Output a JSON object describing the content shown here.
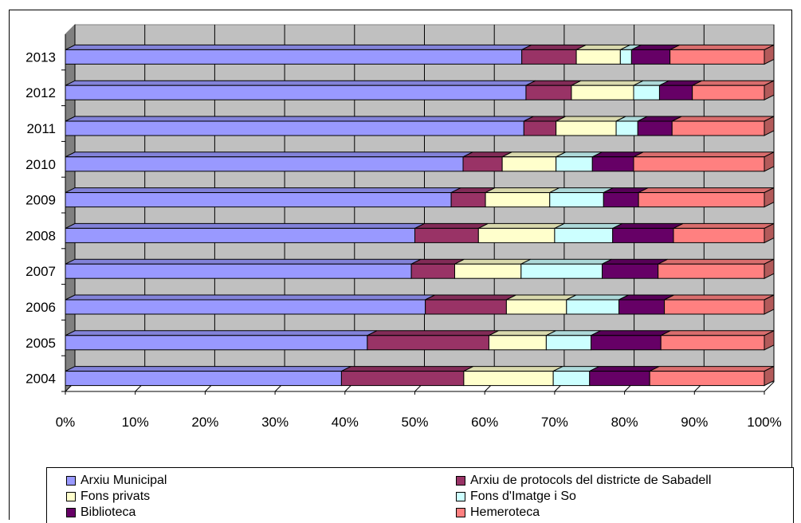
{
  "chart_data": {
    "type": "bar",
    "orientation": "horizontal",
    "stacked": "100%",
    "three_d": true,
    "title": "",
    "xlabel": "",
    "ylabel": "",
    "xlim": [
      0,
      100
    ],
    "x_ticks": [
      "0%",
      "10%",
      "20%",
      "30%",
      "40%",
      "50%",
      "60%",
      "70%",
      "80%",
      "90%",
      "100%"
    ],
    "grid": "vertical",
    "legend_position": "bottom",
    "categories": [
      "2004",
      "2005",
      "2006",
      "2007",
      "2008",
      "2009",
      "2010",
      "2011",
      "2012",
      "2013"
    ],
    "series": [
      {
        "name": "Arxiu Municipal",
        "color": "#9999ff",
        "values": [
          39.5,
          43.2,
          51.5,
          49.5,
          50.0,
          55.2,
          56.9,
          65.6,
          65.9,
          65.3
        ]
      },
      {
        "name": "Arxiu de protocols del districte de Sabadell",
        "color": "#993366",
        "values": [
          17.5,
          17.4,
          11.6,
          6.2,
          9.1,
          4.9,
          5.6,
          4.6,
          6.5,
          7.8
        ]
      },
      {
        "name": "Fons privats",
        "color": "#ffffcc",
        "values": [
          12.8,
          8.2,
          8.6,
          9.5,
          10.9,
          9.2,
          7.7,
          8.6,
          8.9,
          6.3
        ]
      },
      {
        "name": "Fons d'Imatge i So",
        "color": "#ccffff",
        "values": [
          5.2,
          6.4,
          7.5,
          11.6,
          8.3,
          7.7,
          5.2,
          3.1,
          3.7,
          1.6
        ]
      },
      {
        "name": "Biblioteca",
        "color": "#660066",
        "values": [
          8.6,
          10.0,
          6.5,
          8.0,
          8.7,
          5.0,
          5.9,
          4.9,
          4.7,
          5.5
        ]
      },
      {
        "name": "Hemeroteca",
        "color": "#ff8080",
        "values": [
          16.4,
          14.8,
          14.3,
          15.2,
          13.0,
          18.0,
          18.7,
          13.2,
          10.3,
          13.5
        ]
      }
    ]
  }
}
